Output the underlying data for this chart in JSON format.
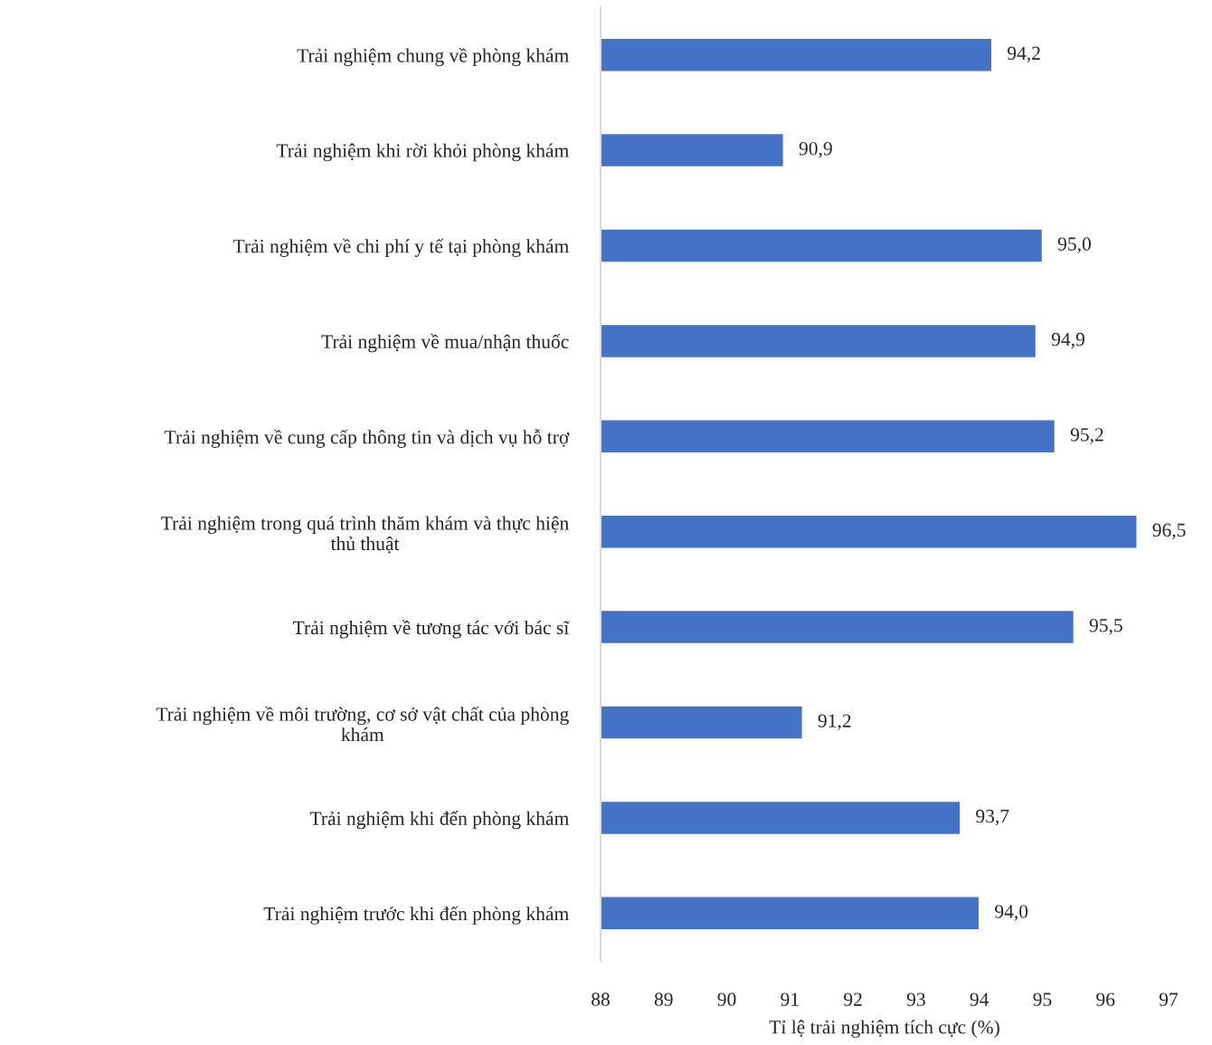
{
  "chart_data": {
    "type": "bar",
    "orientation": "horizontal",
    "xlabel": "Tỉ lệ trải nghiệm tích cực (%)",
    "categories": [
      "Trải nghiệm chung về phòng khám",
      "Trải nghiệm khi rời khỏi phòng khám",
      "Trải nghiệm về chi phí y tế tại phòng khám",
      "Trải nghiệm về mua/nhận thuốc",
      "Trải nghiệm về cung cấp thông tin và dịch vụ hỗ trợ",
      "Trải nghiệm trong quá trình thăm khám và thực hiện\nthủ thuật",
      "Trải nghiệm về tương tác với bác sĩ",
      "Trải nghiệm về môi trường, cơ sở vật chất của phòng\nkhám",
      "Trải nghiệm khi đến phòng khám",
      "Trải nghiệm trước khi đến phòng khám"
    ],
    "values": [
      94.2,
      90.9,
      95.0,
      94.9,
      95.2,
      96.5,
      95.5,
      91.2,
      93.7,
      94.0
    ],
    "value_labels": [
      "94,2",
      "90,9",
      "95,0",
      "94,9",
      "95,2",
      "96,5",
      "95,5",
      "91,2",
      "93,7",
      "94,0"
    ],
    "color": "#4472c4",
    "xlim": [
      88,
      97
    ],
    "xticks": [
      88,
      89,
      90,
      91,
      92,
      93,
      94,
      95,
      96,
      97
    ],
    "grid": false,
    "legend": false
  }
}
